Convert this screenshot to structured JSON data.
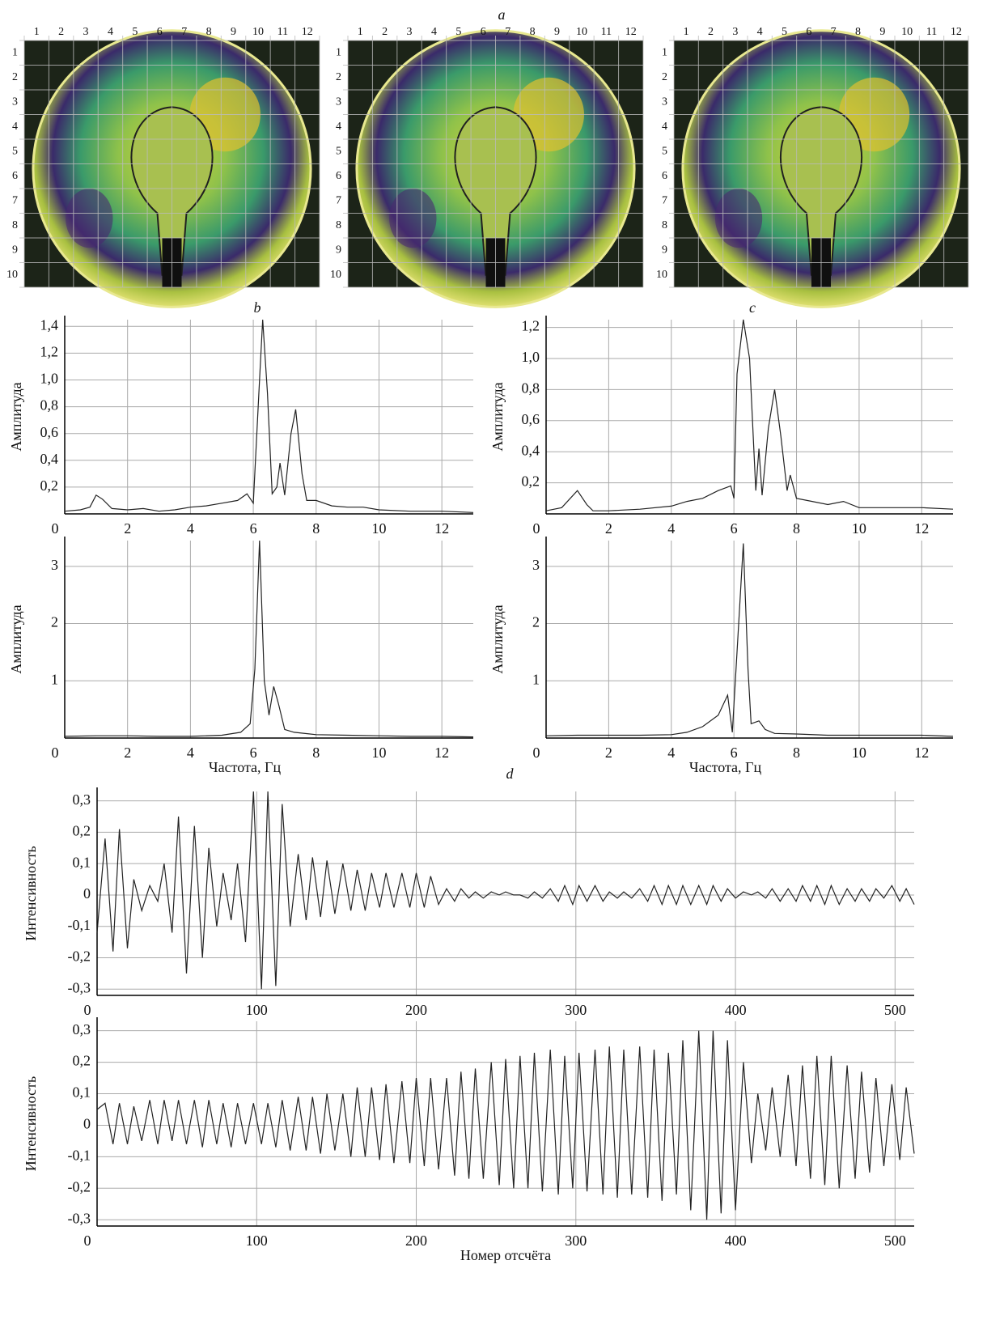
{
  "photos": {
    "title": "a",
    "columns": [
      "1",
      "2",
      "3",
      "4",
      "5",
      "6",
      "7",
      "8",
      "9",
      "10",
      "11",
      "12"
    ],
    "rows": [
      "1",
      "2",
      "3",
      "4",
      "5",
      "6",
      "7",
      "8",
      "9",
      "10"
    ]
  },
  "chart_data": [
    {
      "type": "line",
      "title": "b",
      "y_label": "Амплитуда",
      "x": [
        0,
        0.5,
        0.8,
        1.0,
        1.2,
        1.5,
        2,
        2.5,
        3,
        3.5,
        4,
        4.5,
        5,
        5.5,
        5.8,
        6.0,
        6.2,
        6.3,
        6.45,
        6.6,
        6.75,
        6.85,
        7.0,
        7.2,
        7.35,
        7.55,
        7.7,
        8,
        8.5,
        9,
        9.5,
        10,
        11,
        12,
        13
      ],
      "series": [
        {
          "color": "#222222",
          "values": [
            0.02,
            0.03,
            0.05,
            0.14,
            0.11,
            0.04,
            0.03,
            0.04,
            0.02,
            0.03,
            0.05,
            0.06,
            0.08,
            0.1,
            0.15,
            0.08,
            1.0,
            1.45,
            0.9,
            0.15,
            0.2,
            0.38,
            0.14,
            0.6,
            0.78,
            0.3,
            0.1,
            0.1,
            0.06,
            0.05,
            0.05,
            0.03,
            0.02,
            0.02,
            0.01
          ]
        }
      ],
      "xlim": [
        0,
        13
      ],
      "ylim": [
        0,
        1.45
      ],
      "xticks": [
        0,
        2,
        4,
        6,
        8,
        10,
        12
      ],
      "yticks": [
        {
          "value": 0.2,
          "label": "0,2"
        },
        {
          "value": 0.4,
          "label": "0,4"
        },
        {
          "value": 0.6,
          "label": "0,6"
        },
        {
          "value": 0.8,
          "label": "0,8"
        },
        {
          "value": 1.0,
          "label": "1,0"
        },
        {
          "value": 1.2,
          "label": "1,2"
        },
        {
          "value": 1.4,
          "label": "1,4"
        }
      ],
      "grid": true
    },
    {
      "type": "line",
      "y_label": "Амплитуда",
      "x_label": "Частота, Гц",
      "x": [
        0,
        1,
        2,
        3,
        4,
        5,
        5.6,
        5.9,
        6.05,
        6.2,
        6.35,
        6.5,
        6.65,
        6.8,
        7.0,
        7.3,
        8,
        9,
        10,
        11,
        12,
        13
      ],
      "series": [
        {
          "color": "#222222",
          "values": [
            0.03,
            0.04,
            0.04,
            0.03,
            0.03,
            0.05,
            0.1,
            0.25,
            1.2,
            3.45,
            1.0,
            0.4,
            0.9,
            0.6,
            0.15,
            0.1,
            0.06,
            0.05,
            0.04,
            0.03,
            0.03,
            0.02
          ]
        }
      ],
      "xlim": [
        0,
        13
      ],
      "ylim": [
        0,
        3.45
      ],
      "xticks": [
        0,
        2,
        4,
        6,
        8,
        10,
        12
      ],
      "yticks": [
        1,
        2,
        3
      ],
      "grid": true
    },
    {
      "type": "line",
      "title": "c",
      "y_label": "Амплитуда",
      "x": [
        0,
        0.5,
        1.0,
        1.3,
        1.5,
        2,
        3,
        4,
        4.5,
        5,
        5.5,
        5.9,
        6.0,
        6.1,
        6.3,
        6.5,
        6.7,
        6.8,
        6.9,
        7.1,
        7.3,
        7.5,
        7.7,
        7.8,
        8,
        8.5,
        9,
        9.5,
        10,
        11,
        12,
        13
      ],
      "series": [
        {
          "color": "#222222",
          "values": [
            0.02,
            0.04,
            0.15,
            0.06,
            0.02,
            0.02,
            0.03,
            0.05,
            0.08,
            0.1,
            0.15,
            0.18,
            0.1,
            0.9,
            1.25,
            1.0,
            0.15,
            0.42,
            0.12,
            0.55,
            0.8,
            0.5,
            0.15,
            0.25,
            0.1,
            0.08,
            0.06,
            0.08,
            0.04,
            0.04,
            0.04,
            0.03
          ]
        }
      ],
      "xlim": [
        0,
        13
      ],
      "ylim": [
        0,
        1.25
      ],
      "xticks": [
        0,
        2,
        4,
        6,
        8,
        10,
        12
      ],
      "yticks": [
        {
          "value": 0.2,
          "label": "0,2"
        },
        {
          "value": 0.4,
          "label": "0,4"
        },
        {
          "value": 0.6,
          "label": "0,6"
        },
        {
          "value": 0.8,
          "label": "0,8"
        },
        {
          "value": 1.0,
          "label": "1,0"
        },
        {
          "value": 1.2,
          "label": "1,2"
        }
      ],
      "grid": true
    },
    {
      "type": "line",
      "y_label": "Амплитуда",
      "x_label": "Частота, Гц",
      "x": [
        0,
        1,
        2,
        3,
        4,
        4.5,
        5,
        5.5,
        5.8,
        5.95,
        6.1,
        6.3,
        6.45,
        6.55,
        6.8,
        7.0,
        7.3,
        8,
        9,
        10,
        11,
        12,
        13
      ],
      "series": [
        {
          "color": "#222222",
          "values": [
            0.04,
            0.05,
            0.05,
            0.05,
            0.06,
            0.1,
            0.2,
            0.4,
            0.75,
            0.1,
            1.5,
            3.4,
            1.2,
            0.25,
            0.3,
            0.15,
            0.08,
            0.07,
            0.05,
            0.05,
            0.05,
            0.05,
            0.03
          ]
        }
      ],
      "xlim": [
        0,
        13
      ],
      "ylim": [
        0,
        3.45
      ],
      "xticks": [
        0,
        2,
        4,
        6,
        8,
        10,
        12
      ],
      "yticks": [
        1,
        2,
        3
      ],
      "grid": true
    },
    {
      "type": "line",
      "title": "d",
      "y_label": "Интенсивность",
      "x": [
        0,
        5,
        10,
        14,
        19,
        23,
        28,
        33,
        38,
        42,
        47,
        51,
        56,
        61,
        66,
        70,
        75,
        79,
        84,
        88,
        93,
        98,
        103,
        107,
        112,
        116,
        121,
        126,
        131,
        135,
        140,
        144,
        149,
        154,
        159,
        163,
        168,
        172,
        177,
        181,
        186,
        191,
        196,
        200,
        205,
        209,
        214,
        219,
        224,
        228,
        233,
        237,
        242,
        247,
        252,
        256,
        261,
        265,
        270,
        274,
        279,
        284,
        289,
        293,
        298,
        302,
        307,
        312,
        317,
        321,
        326,
        330,
        335,
        340,
        345,
        349,
        354,
        358,
        363,
        367,
        372,
        377,
        382,
        386,
        391,
        395,
        400,
        405,
        410,
        414,
        419,
        423,
        428,
        433,
        438,
        442,
        447,
        451,
        456,
        460,
        465,
        470,
        475,
        479,
        484,
        488,
        493,
        498,
        503,
        507,
        512
      ],
      "series": [
        {
          "color": "#222222",
          "values": [
            -0.12,
            0.18,
            -0.18,
            0.21,
            -0.17,
            0.05,
            -0.05,
            0.03,
            -0.02,
            0.1,
            -0.12,
            0.25,
            -0.25,
            0.22,
            -0.2,
            0.15,
            -0.1,
            0.07,
            -0.08,
            0.1,
            -0.15,
            0.33,
            -0.3,
            0.33,
            -0.29,
            0.29,
            -0.1,
            0.13,
            -0.08,
            0.12,
            -0.07,
            0.11,
            -0.06,
            0.1,
            -0.05,
            0.08,
            -0.05,
            0.07,
            -0.04,
            0.07,
            -0.04,
            0.07,
            -0.04,
            0.07,
            -0.04,
            0.06,
            -0.03,
            0.02,
            -0.02,
            0.02,
            -0.01,
            0.01,
            -0.01,
            0.01,
            0,
            0.01,
            0,
            0,
            -0.01,
            0.01,
            -0.01,
            0.02,
            -0.02,
            0.03,
            -0.03,
            0.03,
            -0.02,
            0.03,
            -0.02,
            0.01,
            -0.01,
            0.01,
            -0.01,
            0.02,
            -0.02,
            0.03,
            -0.03,
            0.03,
            -0.03,
            0.03,
            -0.03,
            0.03,
            -0.03,
            0.03,
            -0.02,
            0.02,
            -0.01,
            0.01,
            0,
            0.01,
            -0.01,
            0.02,
            -0.02,
            0.02,
            -0.02,
            0.03,
            -0.02,
            0.03,
            -0.03,
            0.03,
            -0.03,
            0.02,
            -0.02,
            0.02,
            -0.02,
            0.02,
            -0.01,
            0.03,
            -0.02,
            0.02,
            -0.03
          ]
        }
      ],
      "xlim": [
        0,
        512
      ],
      "ylim": [
        -0.32,
        0.33
      ],
      "xticks": [
        0,
        100,
        200,
        300,
        400,
        500
      ],
      "yticks": [
        {
          "value": -0.3,
          "label": "-0,3"
        },
        {
          "value": -0.2,
          "label": "-0,2"
        },
        {
          "value": -0.1,
          "label": "-0,1"
        },
        0,
        {
          "value": 0.1,
          "label": "0,1"
        },
        {
          "value": 0.2,
          "label": "0,2"
        },
        {
          "value": 0.3,
          "label": "0,3"
        }
      ],
      "grid": true
    },
    {
      "type": "line",
      "y_label": "Интенсивность",
      "x_label": "Номер отсчёта",
      "x": [
        0,
        5,
        10,
        14,
        19,
        23,
        28,
        33,
        38,
        42,
        47,
        51,
        56,
        61,
        66,
        70,
        75,
        79,
        84,
        88,
        93,
        98,
        103,
        107,
        112,
        116,
        121,
        126,
        131,
        135,
        140,
        144,
        149,
        154,
        159,
        163,
        168,
        172,
        177,
        181,
        186,
        191,
        196,
        200,
        205,
        209,
        214,
        219,
        224,
        228,
        233,
        237,
        242,
        247,
        252,
        256,
        261,
        265,
        270,
        274,
        279,
        284,
        289,
        293,
        298,
        302,
        307,
        312,
        317,
        321,
        326,
        330,
        335,
        340,
        345,
        349,
        354,
        358,
        363,
        367,
        372,
        377,
        382,
        386,
        391,
        395,
        400,
        405,
        410,
        414,
        419,
        423,
        428,
        433,
        438,
        442,
        447,
        451,
        456,
        460,
        465,
        470,
        475,
        479,
        484,
        488,
        493,
        498,
        503,
        507,
        512
      ],
      "series": [
        {
          "color": "#222222",
          "values": [
            0.05,
            0.07,
            -0.06,
            0.07,
            -0.06,
            0.06,
            -0.05,
            0.08,
            -0.06,
            0.08,
            -0.05,
            0.08,
            -0.06,
            0.08,
            -0.07,
            0.08,
            -0.06,
            0.07,
            -0.07,
            0.07,
            -0.06,
            0.07,
            -0.06,
            0.07,
            -0.07,
            0.08,
            -0.08,
            0.09,
            -0.08,
            0.09,
            -0.09,
            0.1,
            -0.08,
            0.1,
            -0.1,
            0.12,
            -0.1,
            0.12,
            -0.11,
            0.13,
            -0.12,
            0.14,
            -0.12,
            0.15,
            -0.13,
            0.15,
            -0.14,
            0.15,
            -0.16,
            0.17,
            -0.17,
            0.18,
            -0.17,
            0.2,
            -0.19,
            0.21,
            -0.2,
            0.22,
            -0.2,
            0.23,
            -0.21,
            0.24,
            -0.22,
            0.22,
            -0.2,
            0.23,
            -0.21,
            0.24,
            -0.22,
            0.25,
            -0.23,
            0.24,
            -0.22,
            0.25,
            -0.23,
            0.24,
            -0.24,
            0.23,
            -0.22,
            0.27,
            -0.27,
            0.3,
            -0.3,
            0.3,
            -0.28,
            0.27,
            -0.27,
            0.2,
            -0.12,
            0.1,
            -0.08,
            0.12,
            -0.1,
            0.16,
            -0.13,
            0.19,
            -0.17,
            0.22,
            -0.19,
            0.22,
            -0.2,
            0.19,
            -0.17,
            0.17,
            -0.15,
            0.15,
            -0.13,
            0.13,
            -0.11,
            0.12,
            -0.09
          ]
        }
      ],
      "xlim": [
        0,
        512
      ],
      "ylim": [
        -0.32,
        0.33
      ],
      "xticks": [
        0,
        100,
        200,
        300,
        400,
        500
      ],
      "yticks": [
        {
          "value": -0.3,
          "label": "-0,3"
        },
        {
          "value": -0.2,
          "label": "-0,2"
        },
        {
          "value": -0.1,
          "label": "-0,1"
        },
        0,
        {
          "value": 0.1,
          "label": "0,1"
        },
        {
          "value": 0.2,
          "label": "0,2"
        },
        {
          "value": 0.3,
          "label": "0,3"
        }
      ],
      "grid": true
    }
  ]
}
